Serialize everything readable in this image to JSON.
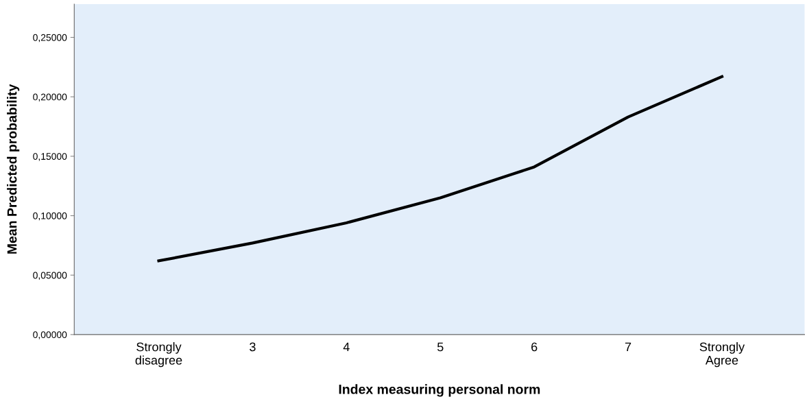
{
  "chart_data": {
    "type": "line",
    "xlabel": "Index measuring personal norm",
    "ylabel": "Mean Predicted probability",
    "categories": [
      "Strongly\ndisagree",
      "3",
      "4",
      "5",
      "6",
      "7",
      "Strongly\nAgree"
    ],
    "series": [
      {
        "color": "#000000",
        "values": [
          0.062,
          0.077,
          0.094,
          0.115,
          0.141,
          0.183,
          0.217
        ]
      }
    ],
    "ylim": [
      0,
      0.278
    ],
    "yticks": [
      {
        "value": 0,
        "label": "0,00000"
      },
      {
        "value": 0.05,
        "label": "0,05000"
      },
      {
        "value": 0.1,
        "label": "0,10000"
      },
      {
        "value": 0.15,
        "label": "0,15000"
      },
      {
        "value": 0.2,
        "label": "0,20000"
      },
      {
        "value": 0.25,
        "label": "0,25000"
      }
    ],
    "grid": false,
    "legend": false,
    "marker": "none",
    "line_style": "solid"
  }
}
